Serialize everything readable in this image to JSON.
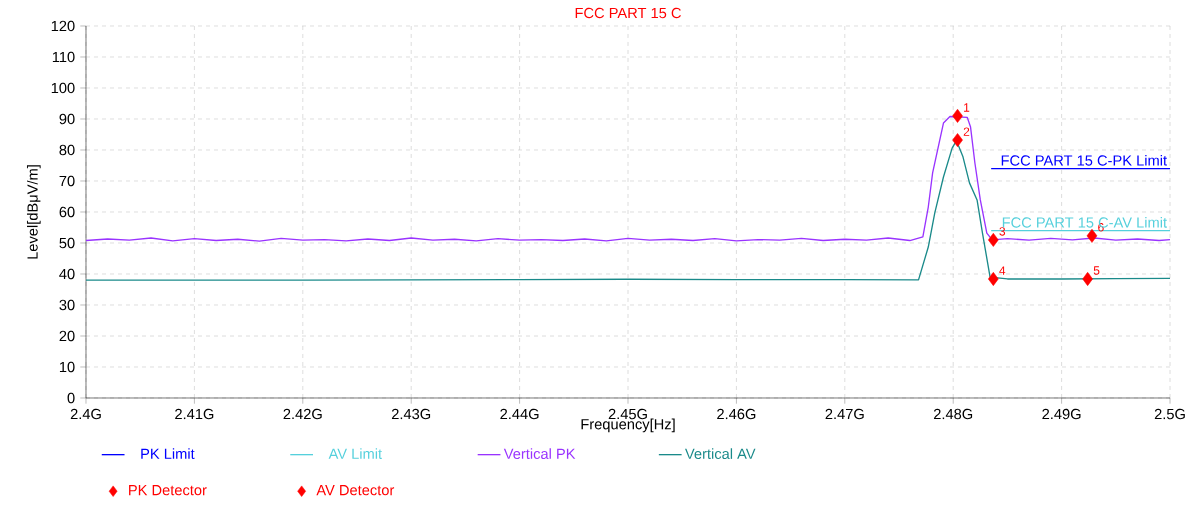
{
  "chart_data": {
    "type": "line",
    "title": "FCC PART 15 C",
    "xlabel": "Frequency[Hz]",
    "ylabel": "Level[dBμV/m]",
    "xlim": [
      2.4,
      2.5
    ],
    "ylim": [
      0,
      120
    ],
    "xticks": [
      {
        "value": 2.4,
        "label": "2.4G"
      },
      {
        "value": 2.41,
        "label": "2.41G"
      },
      {
        "value": 2.42,
        "label": "2.42G"
      },
      {
        "value": 2.43,
        "label": "2.43G"
      },
      {
        "value": 2.44,
        "label": "2.44G"
      },
      {
        "value": 2.45,
        "label": "2.45G"
      },
      {
        "value": 2.46,
        "label": "2.46G"
      },
      {
        "value": 2.47,
        "label": "2.47G"
      },
      {
        "value": 2.48,
        "label": "2.48G"
      },
      {
        "value": 2.49,
        "label": "2.49G"
      },
      {
        "value": 2.5,
        "label": "2.5G"
      }
    ],
    "yticks": [
      0,
      10,
      20,
      30,
      40,
      50,
      60,
      70,
      80,
      90,
      100,
      110,
      120
    ],
    "grid": true,
    "legend": "bottom",
    "series": [
      {
        "name": "PK Limit",
        "color": "#0000ff",
        "x": [
          2.4835,
          2.5
        ],
        "values": [
          74,
          74
        ]
      },
      {
        "name": "AV Limit",
        "color": "#55d0dc",
        "x": [
          2.4835,
          2.5
        ],
        "values": [
          54,
          54
        ]
      },
      {
        "name": "Vertical PK",
        "color": "#9933ff",
        "x": [
          2.4,
          2.402,
          2.404,
          2.406,
          2.408,
          2.41,
          2.412,
          2.414,
          2.416,
          2.418,
          2.42,
          2.422,
          2.424,
          2.426,
          2.428,
          2.43,
          2.432,
          2.434,
          2.436,
          2.438,
          2.44,
          2.442,
          2.444,
          2.446,
          2.448,
          2.45,
          2.452,
          2.454,
          2.456,
          2.458,
          2.46,
          2.462,
          2.464,
          2.466,
          2.468,
          2.47,
          2.472,
          2.474,
          2.476,
          2.4772,
          2.4777,
          2.4781,
          2.4791,
          2.4797,
          2.48035,
          2.4813,
          2.4816,
          2.482,
          2.4825,
          2.4831,
          2.4836,
          2.485,
          2.487,
          2.489,
          2.491,
          2.493,
          2.495,
          2.497,
          2.499,
          2.5
        ],
        "values": [
          50.8,
          51.3,
          50.9,
          51.6,
          50.7,
          51.4,
          50.8,
          51.2,
          50.6,
          51.5,
          50.9,
          51.1,
          50.7,
          51.3,
          50.8,
          51.6,
          50.9,
          51.2,
          50.7,
          51.4,
          50.9,
          51.1,
          50.8,
          51.3,
          50.7,
          51.5,
          50.9,
          51.2,
          50.8,
          51.4,
          50.7,
          51.1,
          50.9,
          51.5,
          50.8,
          51.2,
          50.9,
          51.6,
          50.8,
          52.0,
          61.6,
          72.6,
          88.7,
          90.8,
          null,
          90.5,
          87.4,
          75.8,
          63.9,
          53.2,
          51.0,
          51.4,
          50.9,
          51.5,
          51.0,
          51.6,
          50.9,
          51.3,
          50.8,
          51.1
        ]
      },
      {
        "name": "Vertical AV",
        "color": "#1a8a8a",
        "x": [
          2.4,
          2.41,
          2.42,
          2.43,
          2.44,
          2.45,
          2.46,
          2.47,
          2.4768,
          2.4777,
          2.4783,
          2.4791,
          2.4799,
          2.4803,
          2.4809,
          2.4815,
          2.4822,
          2.4827,
          2.4834,
          2.485,
          2.49,
          2.495,
          2.5
        ],
        "values": [
          38.0,
          38.0,
          38.0,
          38.1,
          38.2,
          38.3,
          38.2,
          38.2,
          38.1,
          48.7,
          59.7,
          71.3,
          80.6,
          83.0,
          77.8,
          69.4,
          63.9,
          53.2,
          39.0,
          38.4,
          38.4,
          38.5,
          38.6
        ]
      },
      {
        "name": "PK Detector",
        "type": "scatter",
        "marker": "diamond",
        "color": "#ff0000",
        "x": [
          2.4804,
          2.4837,
          2.4928
        ],
        "values": [
          91.0,
          51.0,
          52.3
        ]
      },
      {
        "name": "AV Detector",
        "type": "scatter",
        "marker": "diamond",
        "color": "#ff0000",
        "x": [
          2.4804,
          2.4837,
          2.4924
        ],
        "values": [
          83.2,
          38.4,
          38.4
        ]
      }
    ],
    "annotations": [
      {
        "text": "1",
        "x": 2.4804,
        "y": 91.0
      },
      {
        "text": "2",
        "x": 2.4804,
        "y": 83.2
      },
      {
        "text": "3",
        "x": 2.4837,
        "y": 51.0
      },
      {
        "text": "4",
        "x": 2.4837,
        "y": 38.4
      },
      {
        "text": "5",
        "x": 2.4924,
        "y": 38.4
      },
      {
        "text": "6",
        "x": 2.4928,
        "y": 52.3
      },
      {
        "text": "FCC PART 15 C-PK Limit",
        "x": 2.5,
        "y": 74
      },
      {
        "text": "FCC PART 15 C-AV Limit",
        "x": 2.5,
        "y": 54
      }
    ]
  }
}
